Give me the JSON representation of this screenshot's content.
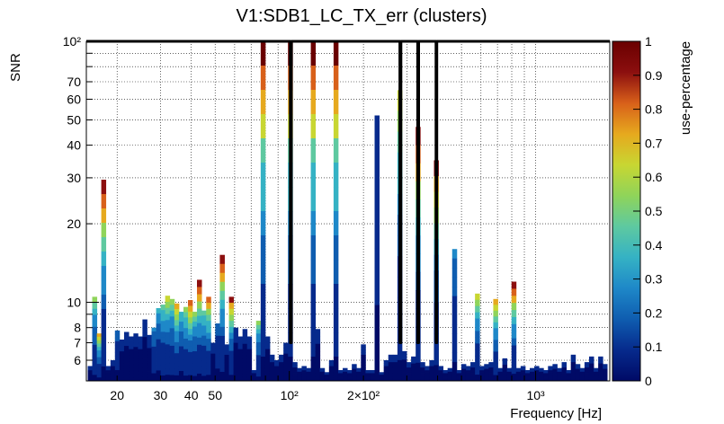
{
  "chart_data": {
    "type": "heatmap",
    "title": "V1:SDB1_LC_TX_err (clusters)",
    "xlabel": "Frequency [Hz]",
    "ylabel": "SNR",
    "zlabel": "use-percentage",
    "x_scale": "log",
    "y_scale": "log",
    "xlim": [
      15,
      2000
    ],
    "ylim": [
      5,
      100
    ],
    "zlim": [
      0,
      1
    ],
    "grid": true,
    "x_tick_labels": [
      {
        "value": 20,
        "text": "20"
      },
      {
        "value": 30,
        "text": "30"
      },
      {
        "value": 40,
        "text": "40"
      },
      {
        "value": 50,
        "text": "50"
      },
      {
        "value": 100,
        "text": "10²"
      },
      {
        "value": 200,
        "text": "2×10²"
      },
      {
        "value": 1000,
        "text": "10³"
      }
    ],
    "y_tick_labels": [
      {
        "value": 6,
        "text": "6"
      },
      {
        "value": 7,
        "text": "7"
      },
      {
        "value": 8,
        "text": "8"
      },
      {
        "value": 10,
        "text": "10"
      },
      {
        "value": 20,
        "text": "20"
      },
      {
        "value": 30,
        "text": "30"
      },
      {
        "value": 40,
        "text": "40"
      },
      {
        "value": 50,
        "text": "50"
      },
      {
        "value": 60,
        "text": "60"
      },
      {
        "value": 70,
        "text": "70"
      },
      {
        "value": 100,
        "text": "10²"
      }
    ],
    "z_tick_labels": [
      "0",
      "0.1",
      "0.2",
      "0.3",
      "0.4",
      "0.5",
      "0.6",
      "0.7",
      "0.8",
      "0.9",
      "1"
    ],
    "columns": [
      {
        "f": 15.5,
        "snr": 5.7
      },
      {
        "f": 16.2,
        "snr": 10.5,
        "hot": 0.5
      },
      {
        "f": 16.9,
        "snr": 7.6,
        "hot": 0.7
      },
      {
        "f": 17.6,
        "snr": 29.5,
        "hot": 0.95
      },
      {
        "f": 18.4,
        "snr": 5.7
      },
      {
        "f": 19.2,
        "snr": 6.0
      },
      {
        "f": 20.0,
        "snr": 7.8,
        "hot": 0.2
      },
      {
        "f": 20.9,
        "snr": 7.2
      },
      {
        "f": 21.8,
        "snr": 7.7
      },
      {
        "f": 22.8,
        "snr": 7.4
      },
      {
        "f": 23.8,
        "snr": 7.6
      },
      {
        "f": 24.8,
        "snr": 7.4
      },
      {
        "f": 25.9,
        "snr": 8.6
      },
      {
        "f": 27.0,
        "snr": 7.5
      },
      {
        "f": 28.2,
        "snr": 8.0,
        "hot": 0.25
      },
      {
        "f": 29.4,
        "snr": 9.5,
        "hot": 0.35
      },
      {
        "f": 30.7,
        "snr": 9.8,
        "hot": 0.45
      },
      {
        "f": 32.0,
        "snr": 10.6,
        "hot": 0.6
      },
      {
        "f": 33.4,
        "snr": 10.3,
        "hot": 0.5
      },
      {
        "f": 34.9,
        "snr": 9.9,
        "hot": 0.7
      },
      {
        "f": 36.4,
        "snr": 9.2,
        "hot": 0.4
      },
      {
        "f": 38.0,
        "snr": 9.6,
        "hot": 0.55
      },
      {
        "f": 39.6,
        "snr": 10.2,
        "hot": 0.85
      },
      {
        "f": 41.3,
        "snr": 9.2,
        "hot": 0.5
      },
      {
        "f": 43.1,
        "snr": 12.2,
        "hot": 0.95
      },
      {
        "f": 45.0,
        "snr": 9.3,
        "hot": 0.45
      },
      {
        "f": 47.0,
        "snr": 10.5,
        "hot": 0.8
      },
      {
        "f": 49.0,
        "snr": 7.0
      },
      {
        "f": 51.1,
        "snr": 8.3,
        "hot": 0.2
      },
      {
        "f": 53.4,
        "snr": 15.2,
        "hot": 0.95
      },
      {
        "f": 55.7,
        "snr": 6.9
      },
      {
        "f": 58.1,
        "snr": 10.5,
        "hot": 0.9
      },
      {
        "f": 60.6,
        "snr": 8.0
      },
      {
        "f": 63.2,
        "snr": 7.4
      },
      {
        "f": 66.0,
        "snr": 7.9
      },
      {
        "f": 68.8,
        "snr": 7.4
      },
      {
        "f": 71.8,
        "snr": 5.5
      },
      {
        "f": 74.9,
        "snr": 8.5,
        "hot": 0.5
      },
      {
        "f": 78.2,
        "snr": 100,
        "hot": 1
      },
      {
        "f": 81.6,
        "snr": 7.4
      },
      {
        "f": 85.1,
        "snr": 6.3
      },
      {
        "f": 88.8,
        "snr": 6.0
      },
      {
        "f": 92.7,
        "snr": 6.3
      },
      {
        "f": 96.7,
        "snr": 7.0
      },
      {
        "f": 100.9,
        "snr": 100,
        "hot": 1
      },
      {
        "f": 105.3,
        "snr": 5.9
      },
      {
        "f": 109.9,
        "snr": 5.6
      },
      {
        "f": 114.7,
        "snr": 5.7
      },
      {
        "f": 119.7,
        "snr": 5.6
      },
      {
        "f": 124.9,
        "snr": 100,
        "hot": 1
      },
      {
        "f": 130.3,
        "snr": 7.9
      },
      {
        "f": 136.0,
        "snr": 5.6
      },
      {
        "f": 141.9,
        "snr": 5.4
      },
      {
        "f": 148.1,
        "snr": 6.0
      },
      {
        "f": 154.5,
        "snr": 100,
        "hot": 1
      },
      {
        "f": 161.3,
        "snr": 5.5
      },
      {
        "f": 168.3,
        "snr": 5.6
      },
      {
        "f": 175.6,
        "snr": 5.5
      },
      {
        "f": 183.3,
        "snr": 5.8
      },
      {
        "f": 191.2,
        "snr": 5.6
      },
      {
        "f": 199.6,
        "snr": 6.9
      },
      {
        "f": 208.3,
        "snr": 5.5
      },
      {
        "f": 217.3,
        "snr": 5.5
      },
      {
        "f": 226.8,
        "snr": 52,
        "hot": 0.12
      },
      {
        "f": 236.7,
        "snr": 5.4
      },
      {
        "f": 247.0,
        "snr": 6.0
      },
      {
        "f": 257.8,
        "snr": 6.3
      },
      {
        "f": 269.0,
        "snr": 6.3
      },
      {
        "f": 280.7,
        "snr": 65,
        "hot": 0.65
      },
      {
        "f": 292.9,
        "snr": 6.5
      },
      {
        "f": 305.7,
        "snr": 5.9
      },
      {
        "f": 319.0,
        "snr": 6.2
      },
      {
        "f": 332.9,
        "snr": 47,
        "hot": 0.95
      },
      {
        "f": 347.4,
        "snr": 5.9
      },
      {
        "f": 362.5,
        "snr": 5.7
      },
      {
        "f": 378.3,
        "snr": 6.0
      },
      {
        "f": 394.8,
        "snr": 35,
        "hot": 0.9
      },
      {
        "f": 412.0,
        "snr": 5.7
      },
      {
        "f": 430.0,
        "snr": 5.5
      },
      {
        "f": 448.7,
        "snr": 5.6
      },
      {
        "f": 468.3,
        "snr": 16,
        "hot": 0.25
      },
      {
        "f": 488.7,
        "snr": 5.5
      },
      {
        "f": 510.0,
        "snr": 5.8
      },
      {
        "f": 532.2,
        "snr": 5.7
      },
      {
        "f": 555.4,
        "snr": 5.9
      },
      {
        "f": 579.6,
        "snr": 10.8,
        "hot": 0.6
      },
      {
        "f": 604.8,
        "snr": 5.7
      },
      {
        "f": 631.2,
        "snr": 5.8
      },
      {
        "f": 658.7,
        "snr": 5.9
      },
      {
        "f": 687.4,
        "snr": 10.3,
        "hot": 0.7
      },
      {
        "f": 717.4,
        "snr": 5.6
      },
      {
        "f": 748.6,
        "snr": 6.1
      },
      {
        "f": 781.3,
        "snr": 5.6
      },
      {
        "f": 815.3,
        "snr": 12,
        "hot": 0.95
      },
      {
        "f": 850.8,
        "snr": 5.6
      },
      {
        "f": 887.9,
        "snr": 5.7
      },
      {
        "f": 926.6,
        "snr": 5.5
      },
      {
        "f": 967.0,
        "snr": 5.6
      },
      {
        "f": 1009.1,
        "snr": 5.7
      },
      {
        "f": 1053.1,
        "snr": 5.6
      },
      {
        "f": 1099.0,
        "snr": 5.5
      },
      {
        "f": 1146.9,
        "snr": 5.7
      },
      {
        "f": 1196.9,
        "snr": 5.8
      },
      {
        "f": 1249.0,
        "snr": 5.6
      },
      {
        "f": 1303.5,
        "snr": 5.9
      },
      {
        "f": 1360.3,
        "snr": 5.5
      },
      {
        "f": 1419.6,
        "snr": 6.3
      },
      {
        "f": 1481.5,
        "snr": 5.8
      },
      {
        "f": 1546.0,
        "snr": 5.6
      },
      {
        "f": 1613.4,
        "snr": 5.9
      },
      {
        "f": 1683.8,
        "snr": 6.2
      },
      {
        "f": 1757.2,
        "snr": 5.6
      },
      {
        "f": 1833.8,
        "snr": 6.2
      },
      {
        "f": 1913.7,
        "snr": 5.8
      }
    ],
    "outline_segments": [
      [
        15,
        101
      ],
      [
        102,
        281
      ],
      [
        284,
        332
      ],
      [
        335,
        394
      ],
      [
        397,
        2000
      ]
    ],
    "outline_low_snr": 7.0,
    "colorscale": [
      "#000a66",
      "#062a8c",
      "#0f5db0",
      "#1e88c8",
      "#35b2c4",
      "#5ec9a0",
      "#8fd45a",
      "#c8d632",
      "#e6a91e",
      "#d8601a",
      "#8c0f0f",
      "#6a0000"
    ]
  }
}
